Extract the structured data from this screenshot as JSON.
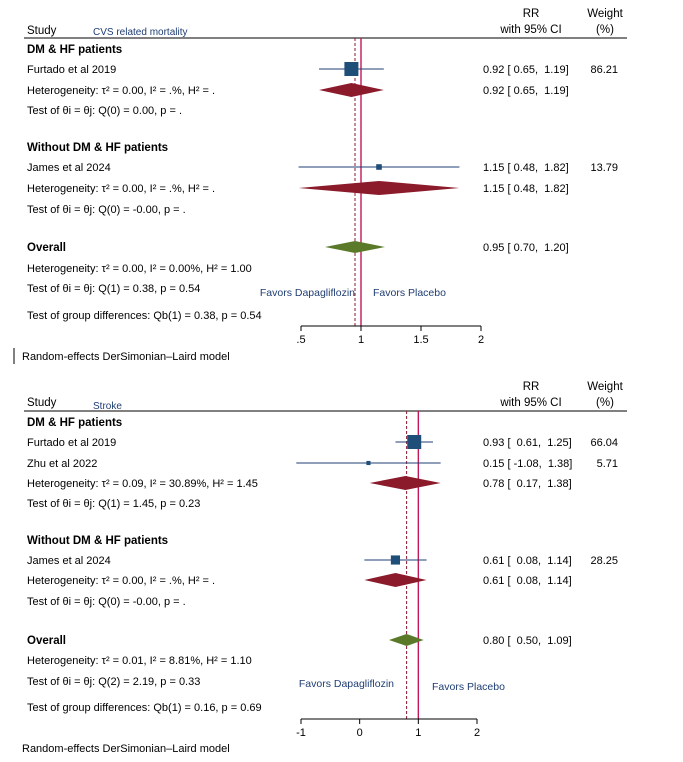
{
  "chart_data": [
    {
      "type": "forest",
      "header": {
        "study": "Study",
        "outcome": "CVS related mortality",
        "rr_line1": "RR",
        "rr_line2": "with 95% CI",
        "weight_line1": "Weight",
        "weight_line2": "(%)"
      },
      "xaxis": {
        "min": 0.5,
        "max": 2,
        "ticks": [
          0.5,
          1,
          1.5,
          2
        ],
        "tick_labels": [
          ".5",
          "1",
          "1.5",
          "2"
        ]
      },
      "null_line": 1,
      "overall_line": 0.95,
      "favors_left": "Favors Dapagliflozin",
      "favors_right": "Favors Placebo",
      "groups": [
        {
          "name": "DM & HF patients",
          "studies": [
            {
              "label": "Furtado et al 2019",
              "rr": 0.92,
              "lo": 0.65,
              "hi": 1.19,
              "ci_text": "0.92 [ 0.65,  1.19]",
              "weight": "86.21",
              "w": 86.21
            }
          ],
          "heterogeneity": "Heterogeneity: τ² = 0.00, I² = .%, H² = .",
          "pooled": {
            "rr": 0.92,
            "lo": 0.65,
            "hi": 1.19,
            "ci_text": "0.92 [ 0.65,  1.19]"
          },
          "test": "Test of θi = θj: Q(0) = 0.00, p = ."
        },
        {
          "name": "Without DM & HF patients",
          "studies": [
            {
              "label": "James et al 2024",
              "rr": 1.15,
              "lo": 0.48,
              "hi": 1.82,
              "ci_text": "1.15 [ 0.48,  1.82]",
              "weight": "13.79",
              "w": 13.79
            }
          ],
          "heterogeneity": "Heterogeneity: τ² = 0.00, I² = .%, H² = .",
          "pooled": {
            "rr": 1.15,
            "lo": 0.48,
            "hi": 1.82,
            "ci_text": "1.15 [ 0.48,  1.82]"
          },
          "test": "Test of θi = θj: Q(0) = -0.00, p = ."
        }
      ],
      "overall": {
        "label": "Overall",
        "rr": 0.95,
        "lo": 0.7,
        "hi": 1.2,
        "ci_text": "0.95 [ 0.70,  1.20]",
        "heterogeneity": "Heterogeneity: τ² = 0.00, I² = 0.00%, H² = 1.00",
        "test": "Test of θi = θj: Q(1) = 0.38, p = 0.54",
        "group_diff": "Test of group differences: Qb(1) = 0.38, p = 0.54"
      },
      "footer": "Random-effects DerSimonian–Laird model"
    },
    {
      "type": "forest",
      "header": {
        "study": "Study",
        "outcome": "Stroke",
        "rr_line1": "RR",
        "rr_line2": "with 95% CI",
        "weight_line1": "Weight",
        "weight_line2": "(%)"
      },
      "xaxis": {
        "min": -1,
        "max": 2,
        "ticks": [
          -1,
          0,
          1,
          2
        ],
        "tick_labels": [
          "-1",
          "0",
          "1",
          "2"
        ]
      },
      "null_line": 1,
      "overall_line": 0.8,
      "favors_left": "Favors Dapagliflozin",
      "favors_right": "Favors Placebo",
      "groups": [
        {
          "name": "DM & HF patients",
          "studies": [
            {
              "label": "Furtado et al 2019",
              "rr": 0.93,
              "lo": 0.61,
              "hi": 1.25,
              "ci_text": "0.93 [  0.61,  1.25]",
              "weight": "66.04",
              "w": 66.04
            },
            {
              "label": "Zhu et al 2022",
              "rr": 0.15,
              "lo": -1.08,
              "hi": 1.38,
              "ci_text": "0.15 [ -1.08,  1.38]",
              "weight": "5.71",
              "w": 5.71
            }
          ],
          "heterogeneity": "Heterogeneity: τ² = 0.09, I² = 30.89%, H² = 1.45",
          "pooled": {
            "rr": 0.78,
            "lo": 0.17,
            "hi": 1.38,
            "ci_text": "0.78 [  0.17,  1.38]"
          },
          "test": "Test of θi = θj: Q(1) = 1.45, p = 0.23"
        },
        {
          "name": "Without DM & HF patients",
          "studies": [
            {
              "label": "James et al 2024",
              "rr": 0.61,
              "lo": 0.08,
              "hi": 1.14,
              "ci_text": "0.61 [  0.08,  1.14]",
              "weight": "28.25",
              "w": 28.25
            }
          ],
          "heterogeneity": "Heterogeneity: τ² = 0.00, I² = .%, H² = .",
          "pooled": {
            "rr": 0.61,
            "lo": 0.08,
            "hi": 1.14,
            "ci_text": "0.61 [  0.08,  1.14]"
          },
          "test": "Test of θi = θj: Q(0) = -0.00, p = ."
        }
      ],
      "overall": {
        "label": "Overall",
        "rr": 0.8,
        "lo": 0.5,
        "hi": 1.09,
        "ci_text": "0.80 [  0.50,  1.09]",
        "heterogeneity": "Heterogeneity: τ² = 0.01, I² = 8.81%, H² = 1.10",
        "test": "Test of θi = θj: Q(2) = 2.19, p = 0.33",
        "group_diff": "Test of group differences: Qb(1) = 0.16, p = 0.69"
      },
      "footer": "Random-effects DerSimonian–Laird model"
    }
  ],
  "colors": {
    "study_marker": "#1f4e79",
    "ci_line": "#1f3d73",
    "subgroup_diamond": "#8b1a2b",
    "overall_diamond": "#5a7a2a",
    "null_line": "#c2185b",
    "overall_line": "#8b1a2b"
  }
}
